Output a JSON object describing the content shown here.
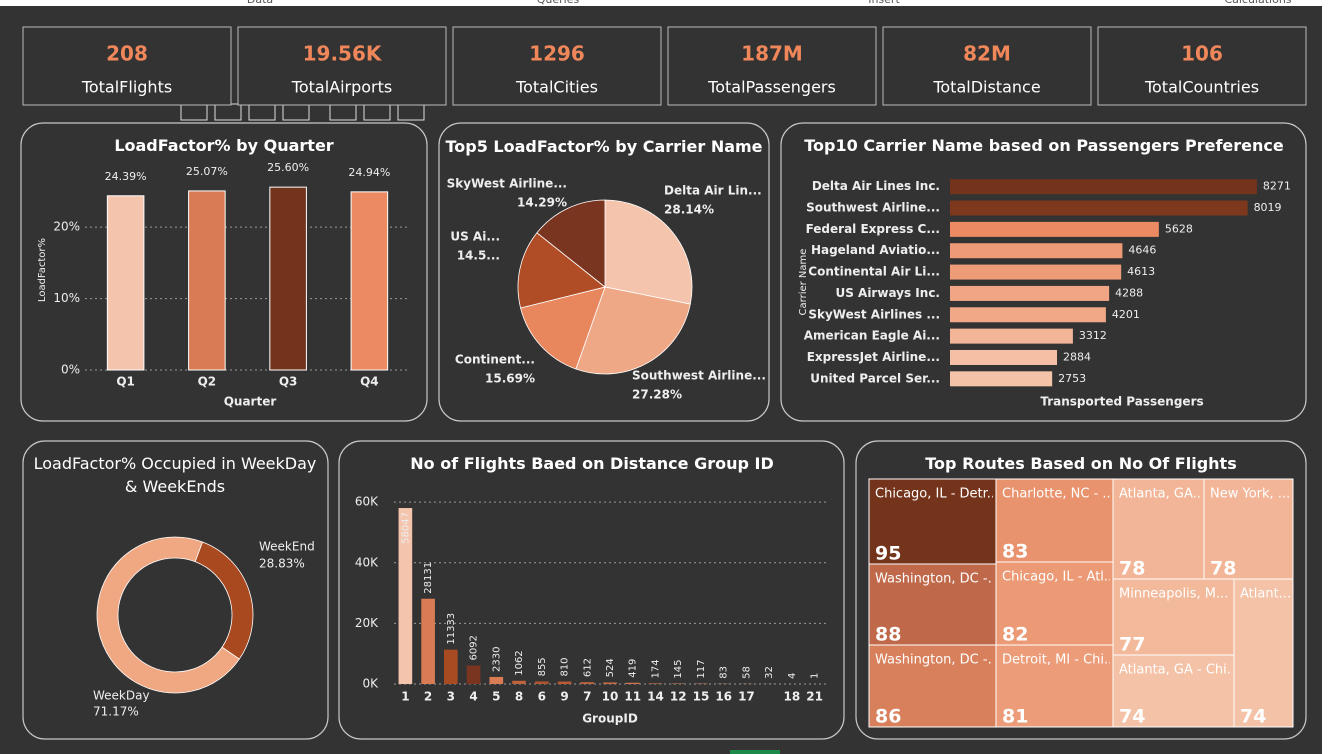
{
  "ribbon": [
    "Data",
    "Queries",
    "Insert",
    "Calculations"
  ],
  "kpis": [
    {
      "name": "TotalFlights",
      "value": 208
    },
    {
      "name": "TotalAirports",
      "value": 19560,
      "value_label": "19.56K"
    },
    {
      "name": "TotalCities",
      "value": 1296
    },
    {
      "name": "TotalPassengers",
      "value": 187000000,
      "value_label": "187M"
    },
    {
      "name": "TotalDistance",
      "value": 82000000,
      "value_label": "82M"
    },
    {
      "name": "TotalCountries",
      "value": 106
    }
  ],
  "chart_data": [
    {
      "type": "bar",
      "title": "LoadFactor% by Quarter",
      "x_label": "Quarter",
      "y_label": "LoadFactor%",
      "categories": [
        "Q1",
        "Q2",
        "Q3",
        "Q4"
      ],
      "values": [
        24.39,
        25.07,
        25.6,
        24.94
      ],
      "value_labels": [
        "24.39%",
        "25.07%",
        "25.60%",
        "24.94%"
      ],
      "colors": [
        "#f4c4ad",
        "#d97b55",
        "#74331b",
        "#eb8a63"
      ],
      "ylim": [
        0,
        28
      ],
      "yticks": [
        {
          "value": 0,
          "label": "0%"
        },
        {
          "value": 10,
          "label": "10%"
        },
        {
          "value": 20,
          "label": "20%"
        }
      ],
      "grid": true
    },
    {
      "type": "pie",
      "title": "Top5 LoadFactor% by Carrier Name",
      "categories": [
        "Delta Air Lin...",
        "Southwest Airline...",
        "Continent...",
        "US Ai...",
        "SkyWest Airline..."
      ],
      "values": [
        28.14,
        27.28,
        15.69,
        14.59,
        14.29
      ],
      "value_labels": [
        "28.14%",
        "27.28%",
        "15.69%",
        "14.5...",
        "14.29%"
      ],
      "colors": [
        "#f4c4ad",
        "#eea886",
        "#e8865e",
        "#b04d26",
        "#7a3520"
      ]
    },
    {
      "type": "hbar",
      "title": "Top10 Carrier Name based on Passengers Preference",
      "x_label": "Transported Passengers",
      "y_label": "Carrier Name",
      "categories": [
        "Delta Air Lines Inc.",
        "Southwest Airline...",
        "Federal Express C...",
        "Hageland Aviatio...",
        "Continental Air Li...",
        "US Airways Inc.",
        "SkyWest Airlines ...",
        "American Eagle Ai...",
        "ExpressJet Airline...",
        "United Parcel Ser..."
      ],
      "values": [
        8271,
        8019,
        5628,
        4646,
        4613,
        4288,
        4201,
        3312,
        2884,
        2753
      ],
      "colors": [
        "#74331b",
        "#7d381d",
        "#eb8a63",
        "#ee9a76",
        "#ee9b77",
        "#f0a684",
        "#f0a886",
        "#f2b597",
        "#f4bfa4",
        "#f4c2a7"
      ],
      "xlim": [
        0,
        8300
      ]
    },
    {
      "type": "donut",
      "title": "LoadFactor% Occupied in WeekDay & WeekEnds",
      "categories": [
        "WeekEnd",
        "WeekDay"
      ],
      "values": [
        28.83,
        71.17
      ],
      "value_labels": [
        "28.83%",
        "71.17%"
      ],
      "colors": [
        "#a9491f",
        "#f0a882"
      ]
    },
    {
      "type": "bar",
      "title": "No of Flights Baed on Distance Group ID",
      "x_label": "GroupID",
      "categories": [
        "1",
        "2",
        "3",
        "4",
        "5",
        "8",
        "6",
        "9",
        "7",
        "10",
        "11",
        "14",
        "12",
        "15",
        "16",
        "17",
        null,
        "18",
        "21"
      ],
      "values": [
        58047,
        28131,
        11333,
        6092,
        2330,
        1062,
        855,
        810,
        612,
        524,
        419,
        174,
        145,
        117,
        83,
        58,
        32,
        4,
        1
      ],
      "colors": [
        "#f4c4ad",
        "#d97b55",
        "#a84a22",
        "#7a3520",
        "#d97b55",
        "#c0623a",
        "#b0542e",
        "#b85a33",
        "#c0623a",
        "#c86a43",
        "#d07550",
        "#d88058",
        "#e08a62",
        "#e5946c",
        "#e99e78",
        "#eda884",
        "#f0b290",
        "#f2bc9c",
        "#f4c4ad"
      ],
      "ylim": [
        0,
        64000
      ],
      "yticks": [
        {
          "value": 0,
          "label": "0K"
        },
        {
          "value": 20000,
          "label": "20K"
        },
        {
          "value": 40000,
          "label": "40K"
        },
        {
          "value": 60000,
          "label": "60K"
        }
      ],
      "grid": true
    },
    {
      "type": "treemap",
      "title": "Top Routes Based on No Of Flights",
      "categories": [
        "Chicago, IL - Detr...",
        "Washington, DC -...",
        "Washington, DC -...",
        "Charlotte, NC - ...",
        "Chicago, IL - Atl...",
        "Detroit, MI - Chi...",
        "Atlanta, GA...",
        "New York, ...",
        "Minneapolis, M...",
        "Atlanta, GA - Chi...",
        "Atlant..."
      ],
      "values": [
        95,
        88,
        86,
        83,
        82,
        81,
        78,
        78,
        77,
        74,
        74
      ],
      "colors": [
        "#74331b",
        "#c0694a",
        "#d8805c",
        "#e8936d",
        "#eb9a75",
        "#ec9c78",
        "#f2b597",
        "#f2b597",
        "#f3b99b",
        "#f4c2a6",
        "#f4c2a6"
      ]
    }
  ]
}
